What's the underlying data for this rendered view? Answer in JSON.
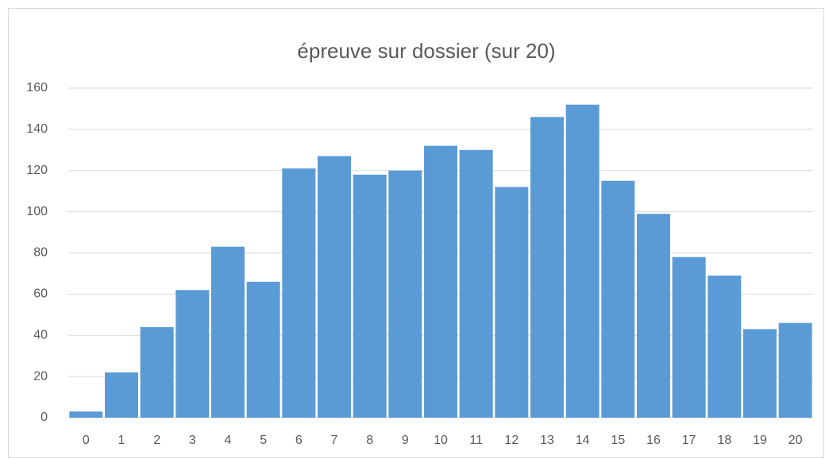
{
  "chart_data": {
    "type": "bar",
    "title": "épreuve sur dossier (sur 20)",
    "categories": [
      "0",
      "1",
      "2",
      "3",
      "4",
      "5",
      "6",
      "7",
      "8",
      "9",
      "10",
      "11",
      "12",
      "13",
      "14",
      "15",
      "16",
      "17",
      "18",
      "19",
      "20"
    ],
    "values": [
      3,
      22,
      44,
      62,
      83,
      66,
      121,
      127,
      118,
      120,
      132,
      130,
      112,
      146,
      152,
      115,
      99,
      78,
      69,
      43,
      46
    ],
    "color": "#5b9bd5",
    "ylim": [
      0,
      160
    ],
    "yticks": [
      0,
      20,
      40,
      60,
      80,
      100,
      120,
      140,
      160
    ],
    "grid": true
  }
}
